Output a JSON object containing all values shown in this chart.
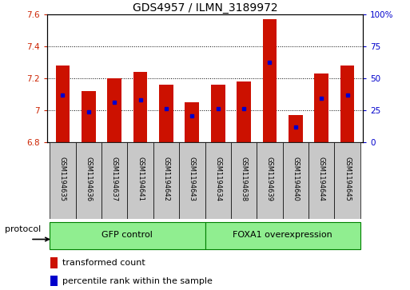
{
  "title": "GDS4957 / ILMN_3189972",
  "samples": [
    "GSM1194635",
    "GSM1194636",
    "GSM1194637",
    "GSM1194641",
    "GSM1194642",
    "GSM1194643",
    "GSM1194634",
    "GSM1194638",
    "GSM1194639",
    "GSM1194640",
    "GSM1194644",
    "GSM1194645"
  ],
  "bar_bottoms": 6.8,
  "bar_tops": [
    7.28,
    7.12,
    7.2,
    7.24,
    7.16,
    7.05,
    7.16,
    7.18,
    7.57,
    6.97,
    7.23,
    7.28
  ],
  "blue_dot_values": [
    7.095,
    6.99,
    7.05,
    7.065,
    7.01,
    6.963,
    7.01,
    7.01,
    7.3,
    6.895,
    7.075,
    7.095
  ],
  "ylim": [
    6.8,
    7.6
  ],
  "yticks": [
    6.8,
    7.0,
    7.2,
    7.4,
    7.6
  ],
  "ytick_labels": [
    "6.8",
    "7",
    "7.2",
    "7.4",
    "7.6"
  ],
  "right_yticks_pct": [
    0,
    25,
    50,
    75,
    100
  ],
  "right_ylabels": [
    "0",
    "25",
    "50",
    "75",
    "100%"
  ],
  "bar_color": "#CC1100",
  "dot_color": "#0000CC",
  "grid_color": "#000000",
  "group1_label": "GFP control",
  "group2_label": "FOXA1 overexpression",
  "protocol_label": "protocol",
  "legend_bar_label": "transformed count",
  "legend_dot_label": "percentile rank within the sample",
  "title_fontsize": 10,
  "tick_fontsize": 7.5,
  "sample_fontsize": 6,
  "group_fontsize": 8,
  "legend_fontsize": 8,
  "protocol_fontsize": 8,
  "tick_color_left": "#CC2200",
  "tick_color_right": "#0000CC",
  "bar_width": 0.55,
  "sample_box_color": "#C8C8C8",
  "group_bg": "#90EE90",
  "group_border": "#008000"
}
